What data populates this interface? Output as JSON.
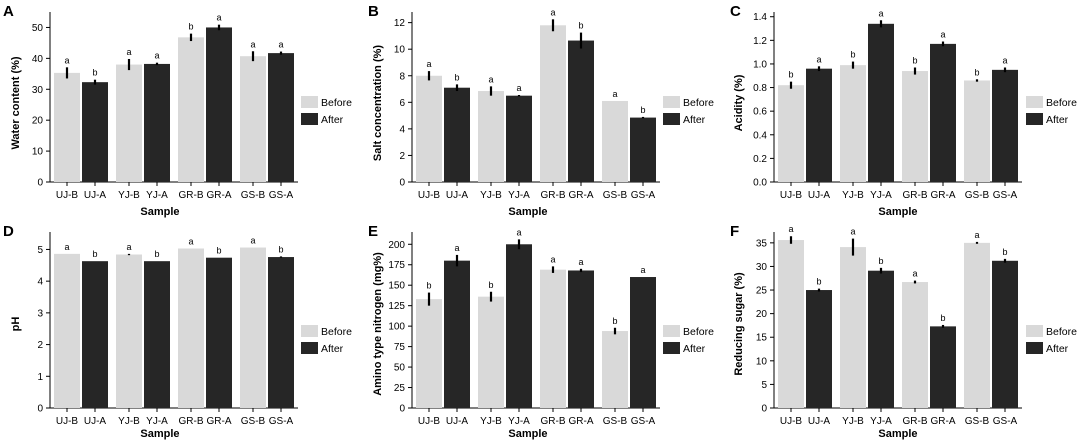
{
  "colors": {
    "before": "#d9d9d9",
    "after": "#262626",
    "axis": "#000000",
    "error": "#000000"
  },
  "chart_data": [
    {
      "type": "bar",
      "panel": "A",
      "categories": [
        "UJ",
        "YJ",
        "GR",
        "GS"
      ],
      "tick_labels": [
        "UJ-B",
        "UJ-A",
        "YJ-B",
        "YJ-A",
        "GR-B",
        "GR-A",
        "GS-B",
        "GS-A"
      ],
      "xlabel": "Sample",
      "ylabel": "Water content (%)",
      "ylim": [
        0,
        55
      ],
      "yticks": [
        0,
        10,
        20,
        30,
        40,
        50
      ],
      "tick_decimals": 0,
      "legend": [
        "Before",
        "After"
      ],
      "legend_position": "right",
      "series": [
        {
          "name": "Before",
          "values": [
            35.3,
            38.0,
            46.8,
            40.7
          ],
          "errors": [
            1.8,
            1.8,
            1.2,
            1.6
          ],
          "sig": [
            "a",
            "a",
            "b",
            "a"
          ]
        },
        {
          "name": "After",
          "values": [
            32.3,
            38.2,
            50.0,
            41.7
          ],
          "errors": [
            0.8,
            0.4,
            0.9,
            0.5
          ],
          "sig": [
            "b",
            "a",
            "a",
            "a"
          ]
        }
      ]
    },
    {
      "type": "bar",
      "panel": "B",
      "categories": [
        "UJ",
        "YJ",
        "GR",
        "GS"
      ],
      "tick_labels": [
        "UJ-B",
        "UJ-A",
        "YJ-B",
        "YJ-A",
        "GR-B",
        "GR-A",
        "GS-B",
        "GS-A"
      ],
      "xlabel": "Sample",
      "ylabel": "Salt concentration (%)",
      "ylim": [
        0,
        12.8
      ],
      "yticks": [
        0,
        2,
        4,
        6,
        8,
        10,
        12
      ],
      "tick_decimals": 0,
      "legend": [
        "Before",
        "After"
      ],
      "legend_position": "right",
      "series": [
        {
          "name": "Before",
          "values": [
            8.0,
            6.85,
            11.8,
            6.1
          ],
          "errors": [
            0.35,
            0.35,
            0.45,
            0.0
          ],
          "sig": [
            "a",
            "a",
            "a",
            "a"
          ]
        },
        {
          "name": "After",
          "values": [
            7.1,
            6.5,
            10.65,
            4.85
          ],
          "errors": [
            0.25,
            0.05,
            0.6,
            0.05
          ],
          "sig": [
            "b",
            "a",
            "b",
            "b"
          ]
        }
      ]
    },
    {
      "type": "bar",
      "panel": "C",
      "categories": [
        "UJ",
        "YJ",
        "GR",
        "GS"
      ],
      "tick_labels": [
        "UJ-B",
        "UJ-A",
        "YJ-B",
        "YJ-A",
        "GR-B",
        "GR-A",
        "GS-B",
        "GS-A"
      ],
      "xlabel": "Sample",
      "ylabel": "Acidity (%)",
      "ylim": [
        0,
        1.44
      ],
      "yticks": [
        0,
        0.2,
        0.4,
        0.6,
        0.8,
        1.0,
        1.2,
        1.4
      ],
      "tick_decimals": 1,
      "legend": [
        "Before",
        "After"
      ],
      "legend_position": "right",
      "series": [
        {
          "name": "Before",
          "values": [
            0.82,
            0.99,
            0.94,
            0.86
          ],
          "errors": [
            0.03,
            0.03,
            0.03,
            0.01
          ],
          "sig": [
            "b",
            "b",
            "b",
            "b"
          ]
        },
        {
          "name": "After",
          "values": [
            0.96,
            1.34,
            1.17,
            0.95
          ],
          "errors": [
            0.02,
            0.03,
            0.02,
            0.02
          ],
          "sig": [
            "a",
            "a",
            "a",
            "a"
          ]
        }
      ]
    },
    {
      "type": "bar",
      "panel": "D",
      "categories": [
        "UJ",
        "YJ",
        "GR",
        "GS"
      ],
      "tick_labels": [
        "UJ-B",
        "UJ-A",
        "YJ-B",
        "YJ-A",
        "GR-B",
        "GR-A",
        "GS-B",
        "GS-A"
      ],
      "xlabel": "Sample",
      "ylabel": "pH",
      "ylim": [
        0,
        5.55
      ],
      "yticks": [
        0,
        1,
        2,
        3,
        4,
        5
      ],
      "tick_decimals": 0,
      "legend": [
        "Before",
        "After"
      ],
      "legend_position": "right",
      "series": [
        {
          "name": "Before",
          "values": [
            4.86,
            4.84,
            5.03,
            5.06
          ],
          "errors": [
            0.0,
            0.02,
            0.0,
            0.0
          ],
          "sig": [
            "a",
            "a",
            "a",
            "a"
          ]
        },
        {
          "name": "After",
          "values": [
            4.63,
            4.63,
            4.74,
            4.76
          ],
          "errors": [
            0.0,
            0.0,
            0.0,
            0.02
          ],
          "sig": [
            "b",
            "b",
            "b",
            "b"
          ]
        }
      ]
    },
    {
      "type": "bar",
      "panel": "E",
      "categories": [
        "UJ",
        "YJ",
        "GR",
        "GS"
      ],
      "tick_labels": [
        "UJ-B",
        "UJ-A",
        "YJ-B",
        "YJ-A",
        "GR-B",
        "GR-A",
        "GS-B",
        "GS-A"
      ],
      "xlabel": "Sample",
      "ylabel": "Amino type nitrogen (mg%)",
      "ylim": [
        0,
        215
      ],
      "yticks": [
        0,
        25,
        50,
        75,
        100,
        125,
        150,
        175,
        200
      ],
      "tick_decimals": 0,
      "legend": [
        "Before",
        "After"
      ],
      "legend_position": "right",
      "series": [
        {
          "name": "Before",
          "values": [
            133,
            136,
            169,
            94
          ],
          "errors": [
            8,
            6,
            4,
            4
          ],
          "sig": [
            "b",
            "b",
            "a",
            "b"
          ]
        },
        {
          "name": "After",
          "values": [
            180,
            200,
            168,
            160
          ],
          "errors": [
            7,
            6,
            2,
            0
          ],
          "sig": [
            "a",
            "a",
            "a",
            "a"
          ]
        }
      ]
    },
    {
      "type": "bar",
      "panel": "F",
      "categories": [
        "UJ",
        "YJ",
        "GR",
        "GS"
      ],
      "tick_labels": [
        "UJ-B",
        "UJ-A",
        "YJ-B",
        "YJ-A",
        "GR-B",
        "GR-A",
        "GS-B",
        "GS-A"
      ],
      "xlabel": "Sample",
      "ylabel": "Reducing sugar (%)",
      "ylim": [
        0,
        37.3
      ],
      "yticks": [
        0,
        5,
        10,
        15,
        20,
        25,
        30,
        35
      ],
      "tick_decimals": 0,
      "legend": [
        "Before",
        "After"
      ],
      "legend_position": "right",
      "series": [
        {
          "name": "Before",
          "values": [
            35.6,
            34.1,
            26.7,
            35.0
          ],
          "errors": [
            0.8,
            1.8,
            0.3,
            0.2
          ],
          "sig": [
            "a",
            "a",
            "a",
            "a"
          ]
        },
        {
          "name": "After",
          "values": [
            25.0,
            29.1,
            17.3,
            31.2
          ],
          "errors": [
            0.3,
            0.6,
            0.3,
            0.4
          ],
          "sig": [
            "b",
            "b",
            "b",
            "b"
          ]
        }
      ]
    }
  ]
}
